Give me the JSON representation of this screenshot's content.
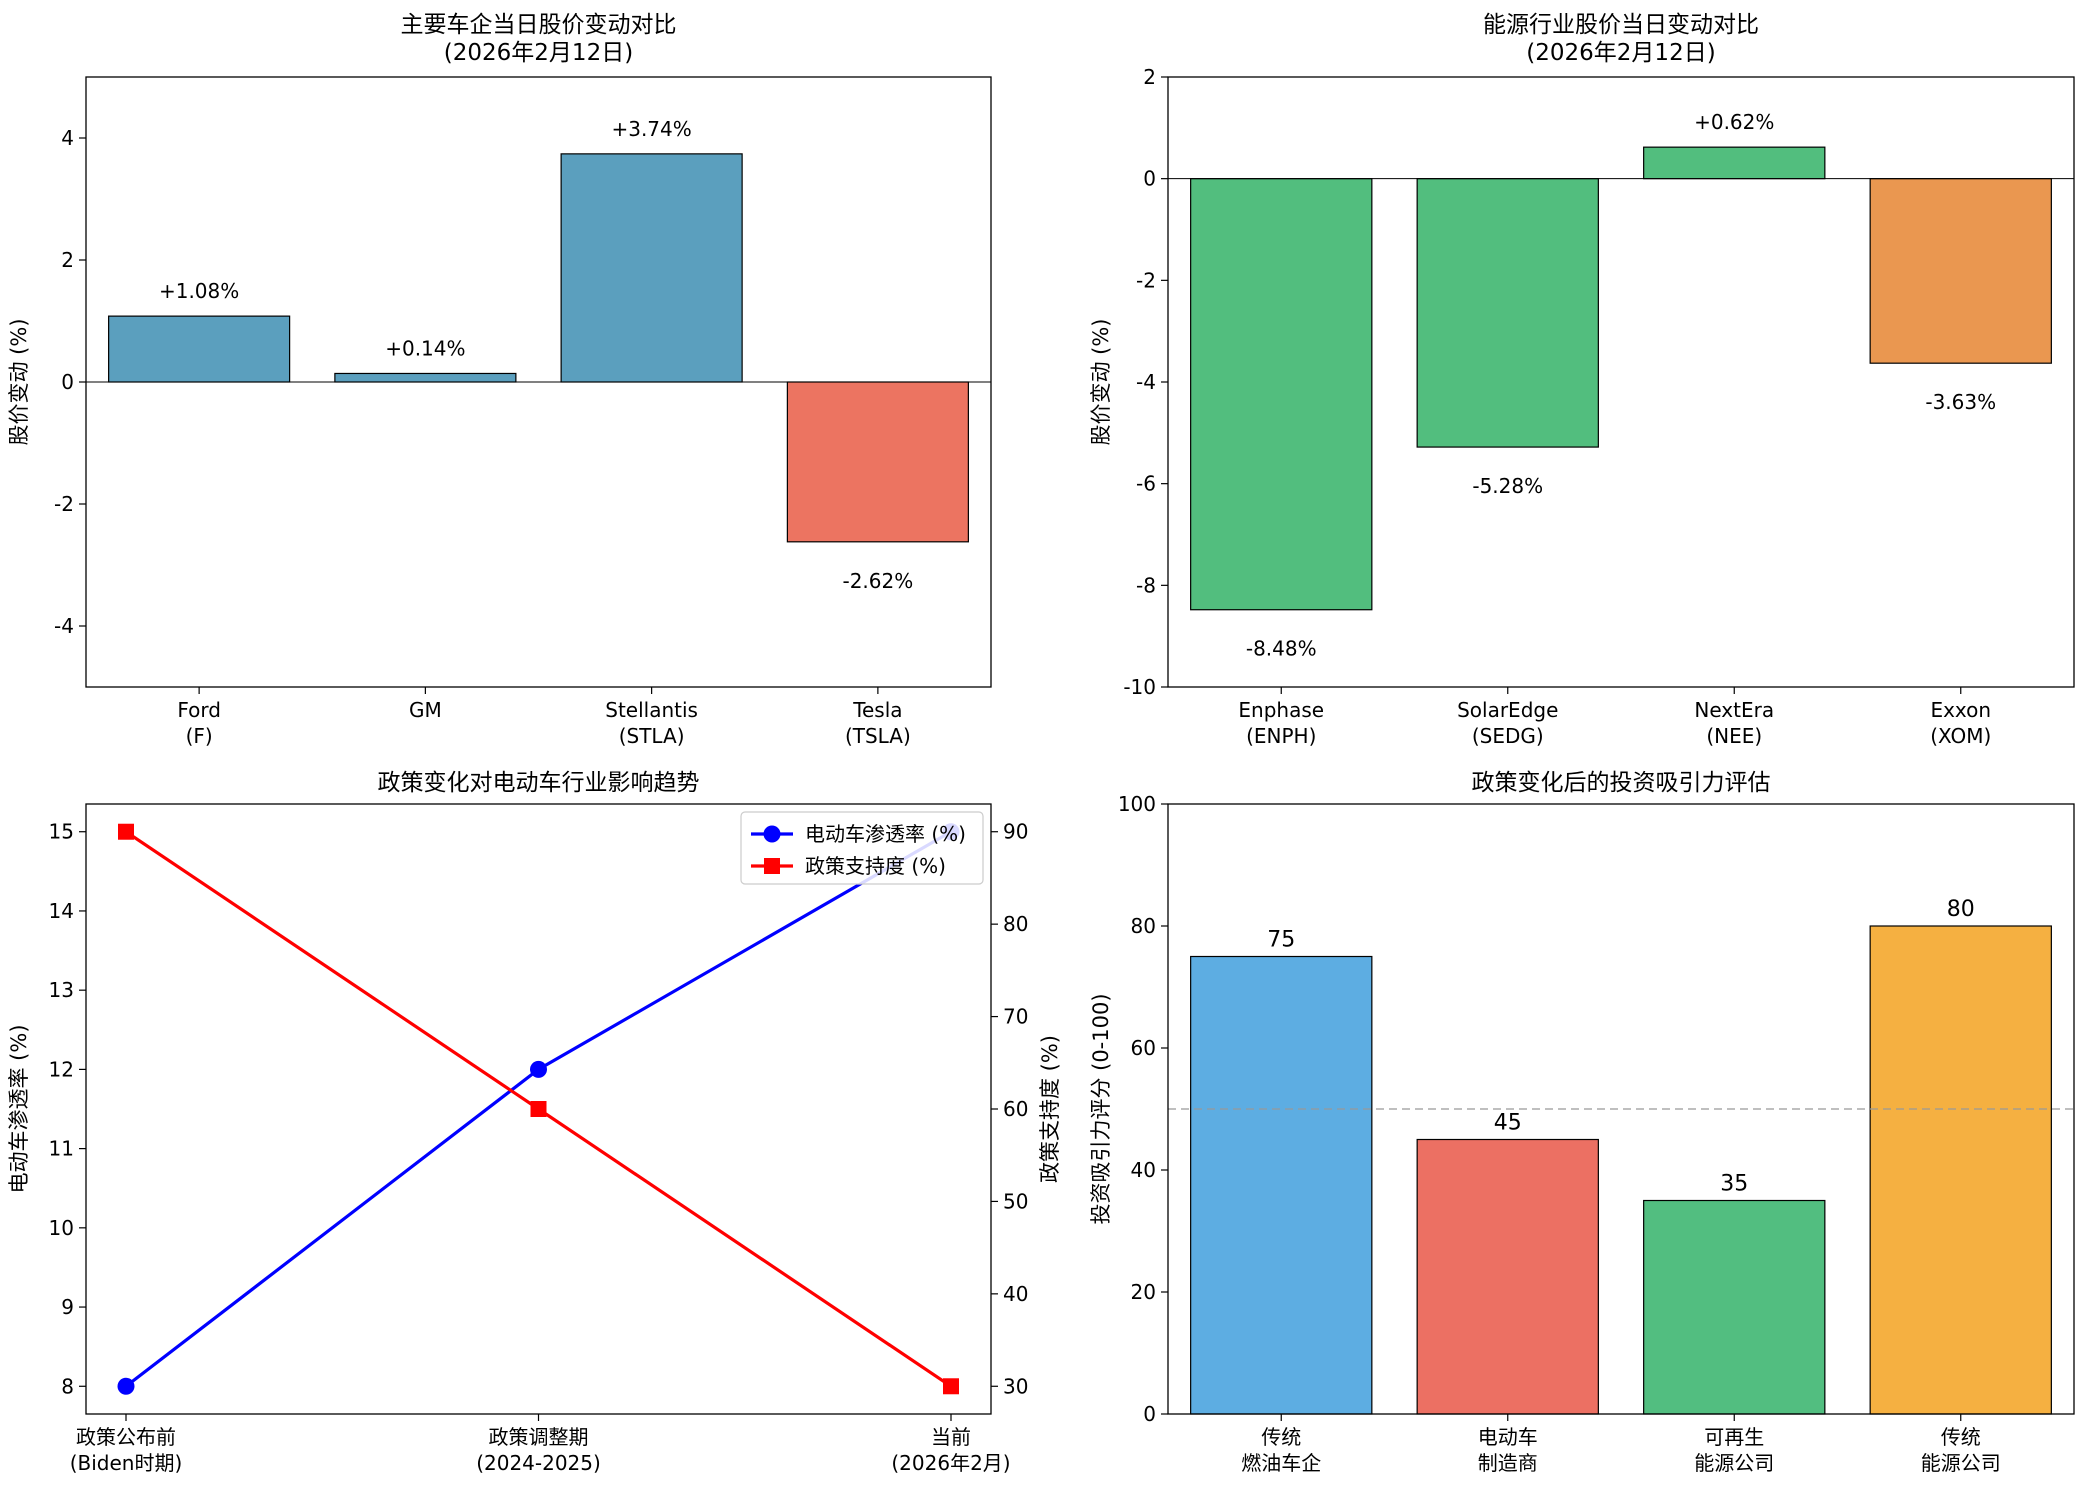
{
  "chart_data": [
    {
      "type": "bar",
      "title": "主要车企当日股价变动对比",
      "subtitle": "(2026年2月12日)",
      "xlabel": "",
      "ylabel": "股价变动 (%)",
      "ylim": [
        -5,
        5
      ],
      "yticks": [
        -4,
        -2,
        0,
        2,
        4
      ],
      "ytick_labels": [
        "-4",
        "-2",
        "0",
        "2",
        "4"
      ],
      "categories": [
        [
          "Ford",
          "(F)"
        ],
        [
          "GM",
          ""
        ],
        [
          "Stellantis",
          "(STLA)"
        ],
        [
          "Tesla",
          "(TSLA)"
        ]
      ],
      "values": [
        1.08,
        0.14,
        3.74,
        -2.62
      ],
      "labels": [
        "+1.08%",
        "+0.14%",
        "+3.74%",
        "-2.62%"
      ],
      "colors": [
        "#5b9fbe",
        "#5b9fbe",
        "#5b9fbe",
        "#ec7461"
      ],
      "zero_line": true,
      "grid": false
    },
    {
      "type": "bar",
      "title": "能源行业股价当日变动对比",
      "subtitle": "(2026年2月12日)",
      "xlabel": "",
      "ylabel": "股价变动 (%)",
      "ylim": [
        -10,
        2
      ],
      "yticks": [
        -10,
        -8,
        -6,
        -4,
        -2,
        0,
        2
      ],
      "ytick_labels": [
        "-10",
        "-8",
        "-6",
        "-4",
        "-2",
        "0",
        "2"
      ],
      "categories": [
        [
          "Enphase",
          "(ENPH)"
        ],
        [
          "SolarEdge",
          "(SEDG)"
        ],
        [
          "NextEra",
          "(NEE)"
        ],
        [
          "Exxon",
          "(XOM)"
        ]
      ],
      "values": [
        -8.48,
        -5.28,
        0.62,
        -3.63
      ],
      "labels": [
        "-8.48%",
        "-5.28%",
        "+0.62%",
        "-3.63%"
      ],
      "colors": [
        "#52be7e",
        "#52be7e",
        "#52be7e",
        "#ea9750"
      ],
      "zero_line": true,
      "grid": false
    },
    {
      "type": "line",
      "title": "政策变化对电动车行业影响趋势",
      "categories": [
        [
          "政策公布前",
          "(Biden时期)"
        ],
        [
          "政策调整期",
          "(2024-2025)"
        ],
        [
          "当前",
          "(2026年2月)"
        ]
      ],
      "series": [
        {
          "name": "电动车渗透率 (%)",
          "values": [
            8,
            12,
            15
          ],
          "axis": "left",
          "color": "#0000ff",
          "marker": "circle"
        },
        {
          "name": "政策支持度 (%)",
          "values": [
            90,
            60,
            30
          ],
          "axis": "right",
          "color": "#ff0000",
          "marker": "square"
        }
      ],
      "ylabel_left": "电动车渗透率 (%)",
      "ylabel_right": "政策支持度 (%)",
      "ylim_left": [
        7.65,
        15.35
      ],
      "ylim_right": [
        27,
        93
      ],
      "yticks_left": [
        8,
        9,
        10,
        11,
        12,
        13,
        14,
        15
      ],
      "ytick_labels_left": [
        "8",
        "9",
        "10",
        "11",
        "12",
        "13",
        "14",
        "15"
      ],
      "yticks_right": [
        30,
        40,
        50,
        60,
        70,
        80,
        90
      ],
      "ytick_labels_right": [
        "30",
        "40",
        "50",
        "60",
        "70",
        "80",
        "90"
      ],
      "legend": "upper-right",
      "grid": false
    },
    {
      "type": "bar",
      "title": "政策变化后的投资吸引力评估",
      "xlabel": "",
      "ylabel": "投资吸引力评分 (0-100)",
      "ylim": [
        0,
        100
      ],
      "yticks": [
        0,
        20,
        40,
        60,
        80,
        100
      ],
      "ytick_labels": [
        "0",
        "20",
        "40",
        "60",
        "80",
        "100"
      ],
      "categories": [
        [
          "传统",
          "燃油车企"
        ],
        [
          "电动车",
          "制造商"
        ],
        [
          "可再生",
          "能源公司"
        ],
        [
          "传统",
          "能源公司"
        ]
      ],
      "values": [
        75,
        45,
        35,
        80
      ],
      "labels": [
        "75",
        "45",
        "35",
        "80"
      ],
      "colors": [
        "#5dade2",
        "#ec7063",
        "#52be80",
        "#f5b041"
      ],
      "reference_line": 50,
      "grid": false
    }
  ]
}
